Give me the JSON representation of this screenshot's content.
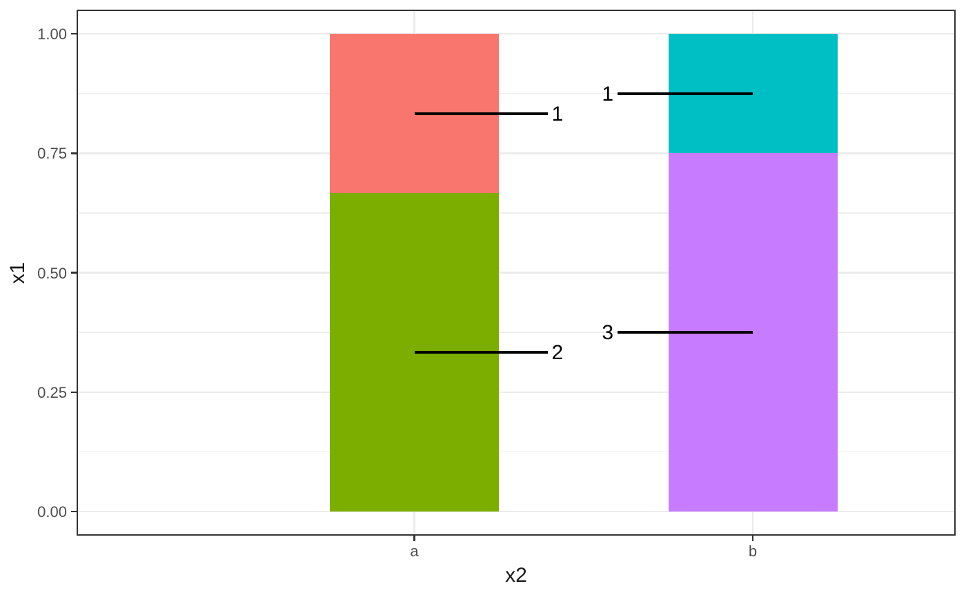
{
  "chart_data": {
    "type": "bar",
    "subtype": "stacked-normalized",
    "title": "",
    "xlabel": "x2",
    "ylabel": "x1",
    "categories": [
      "a",
      "b"
    ],
    "ylim": [
      0,
      1
    ],
    "grid": "horizontal major+minor, vertical major at category centers",
    "legend": "none",
    "y_major_ticks": [
      {
        "value": 0.0,
        "label": "0.00"
      },
      {
        "value": 0.25,
        "label": "0.25"
      },
      {
        "value": 0.5,
        "label": "0.50"
      },
      {
        "value": 0.75,
        "label": "0.75"
      },
      {
        "value": 1.0,
        "label": "1.00"
      }
    ],
    "y_minor_gridlines": [
      0.125,
      0.375,
      0.625,
      0.875
    ],
    "bars": [
      {
        "category": "a",
        "segments": [
          {
            "name": "a-lower-segment",
            "color": "#7CAE00",
            "from": 0,
            "to": 0.6667,
            "count": 2
          },
          {
            "name": "a-upper-segment",
            "color": "#F8766D",
            "from": 0.6667,
            "to": 1,
            "count": 1
          }
        ]
      },
      {
        "category": "b",
        "segments": [
          {
            "name": "b-lower-segment",
            "color": "#C77CFF",
            "from": 0,
            "to": 0.75,
            "count": 3
          },
          {
            "name": "b-upper-segment",
            "color": "#00BFC4",
            "from": 0.75,
            "to": 1,
            "count": 1
          }
        ]
      }
    ],
    "annotations": [
      {
        "text": "1",
        "category": "a",
        "y": 0.8333,
        "side": "right"
      },
      {
        "text": "2",
        "category": "a",
        "y": 0.3333,
        "side": "right"
      },
      {
        "text": "1",
        "category": "b",
        "y": 0.875,
        "side": "left"
      },
      {
        "text": "3",
        "category": "b",
        "y": 0.375,
        "side": "left"
      }
    ]
  },
  "colors": {
    "background": "#FFFFFF",
    "panel_border": "#333333",
    "grid_major": "#EBEBEB",
    "grid_minor": "#EDEDED",
    "tick_mark": "#333333",
    "tick_label": "#4D4D4D",
    "axis_title": "#1A1A1A",
    "annotation_text": "#000000",
    "leader_line": "#000000"
  }
}
